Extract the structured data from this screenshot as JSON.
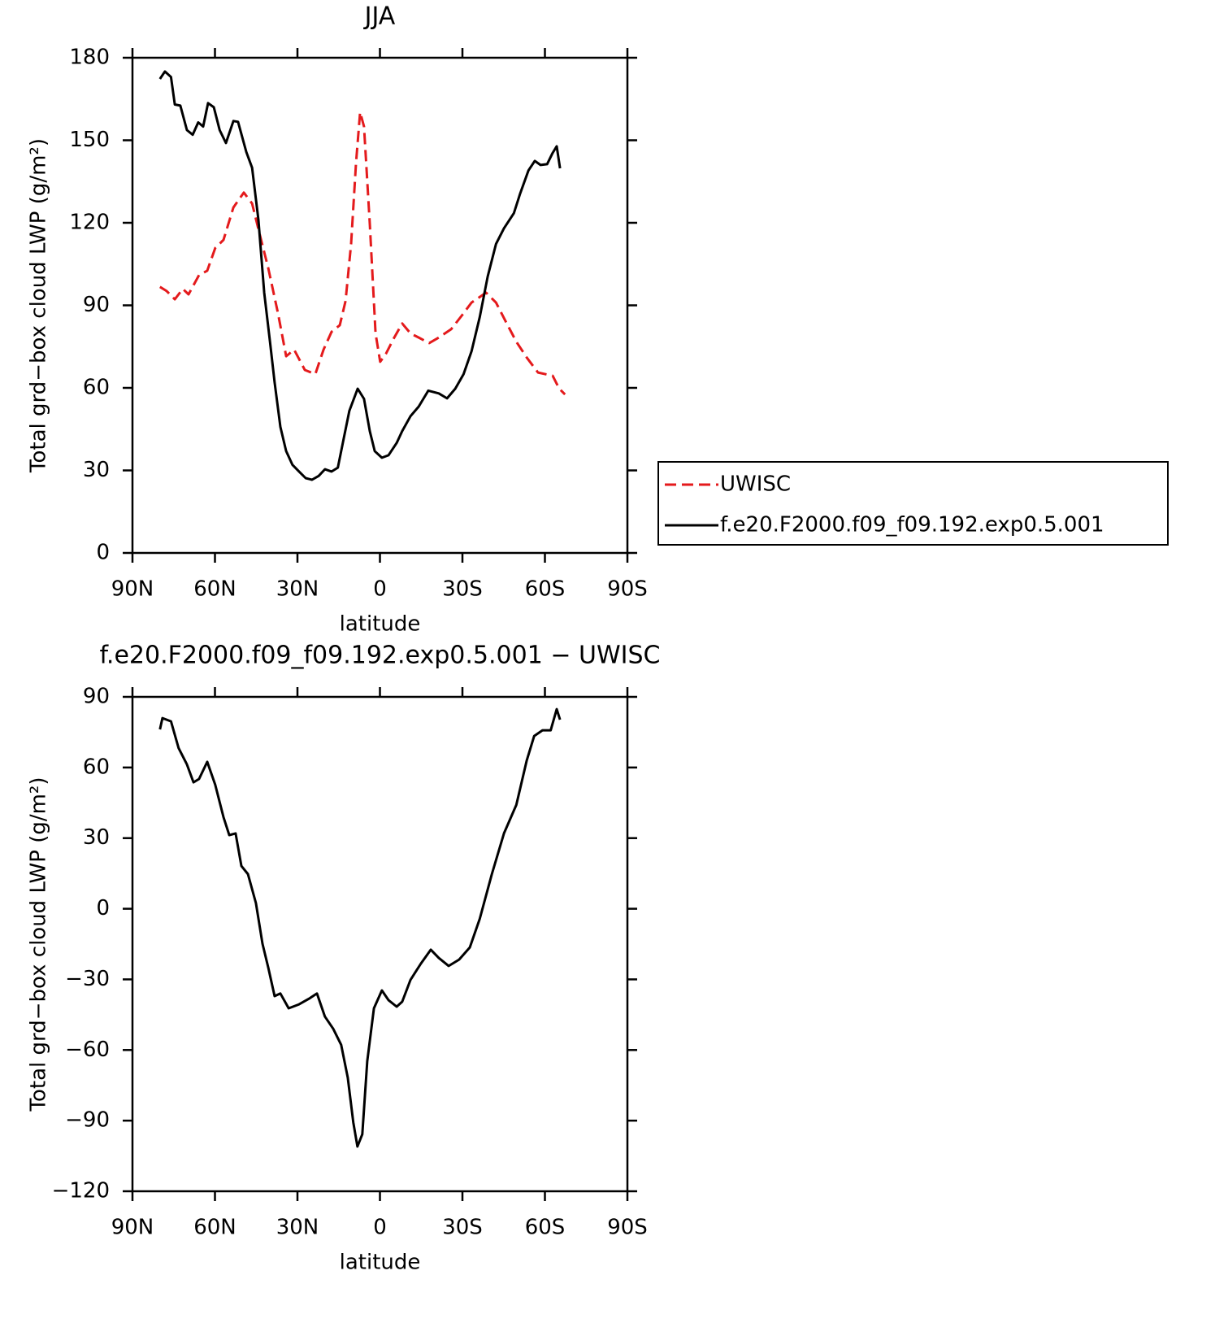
{
  "chart_data": [
    {
      "type": "line",
      "title": "JJA",
      "xlabel": "latitude",
      "ylabel": "Total grd−box cloud LWP (g/m²)",
      "xlim": [
        90,
        -90
      ],
      "xticks": [
        {
          "value": 90,
          "label": "90N"
        },
        {
          "value": 60,
          "label": "60N"
        },
        {
          "value": 30,
          "label": "30N"
        },
        0,
        {
          "value": -30,
          "label": "30S"
        },
        {
          "value": -60,
          "label": "60S"
        },
        {
          "value": -90,
          "label": "90S"
        }
      ],
      "ylim": [
        0,
        180
      ],
      "yticks": [
        0,
        30,
        60,
        90,
        120,
        150,
        180
      ],
      "legend": "right",
      "series": [
        {
          "name": "UWISC",
          "color": "#e41a1c",
          "dashed": true,
          "x": [
            80,
            77.6,
            74.6,
            71.7,
            69.6,
            65.8,
            62.8,
            59.9,
            56.9,
            53.3,
            49.5,
            46.5,
            43.6,
            40.6,
            37.1,
            34.1,
            31.2,
            27.3,
            23.5,
            20.5,
            17.6,
            14.6,
            12.5,
            10.5,
            8.7,
            7.2,
            5.8,
            3.7,
            1.6,
            -0.1,
            -2.2,
            -5.2,
            -8.1,
            -11.1,
            -14.1,
            -17.9,
            -21.4,
            -25.9,
            -29.8,
            -33.3,
            -38.6,
            -42.2,
            -45.7,
            -49.6,
            -53.4,
            -57.5,
            -62.8,
            -65.2,
            -67.3
          ],
          "values": [
            96.7,
            95.2,
            92.2,
            96,
            94,
            101,
            102.6,
            110.8,
            113.8,
            125.6,
            131,
            127,
            115.3,
            103.5,
            87.2,
            71.5,
            73.9,
            66.5,
            65,
            73.9,
            80.4,
            82.8,
            91.6,
            112.3,
            141.9,
            160.2,
            155,
            119.7,
            79.8,
            69.5,
            72.4,
            78.3,
            83.4,
            79.8,
            78.3,
            76.3,
            78.3,
            81.3,
            86.3,
            91,
            94.6,
            91,
            84.2,
            76.8,
            71,
            65.6,
            64.4,
            59.7,
            57.6
          ]
        },
        {
          "name": "f.e20.F2000.f09_f09.192.exp0.5.001",
          "color": "#000000",
          "dashed": false,
          "x": [
            80,
            78.2,
            76,
            74.6,
            72.6,
            70.2,
            68.1,
            66.1,
            64.3,
            62.5,
            60.4,
            58.3,
            56,
            53.3,
            51.6,
            48.6,
            46.5,
            44.2,
            42.1,
            40,
            38.3,
            36.2,
            34.1,
            31.8,
            29.4,
            27,
            24.7,
            22.3,
            20,
            17.6,
            15.3,
            13.2,
            11.1,
            8.1,
            5.8,
            3.7,
            1.9,
            -0.7,
            -3.1,
            -6.1,
            -8.1,
            -11.1,
            -14.1,
            -17.6,
            -21.4,
            -24.4,
            -27.4,
            -30.4,
            -33.3,
            -36.3,
            -39.2,
            -42.2,
            -45.1,
            -48.7,
            -51,
            -54,
            -56.3,
            -58.4,
            -60.8,
            -62.8,
            -64.3,
            -65.5
          ],
          "values": [
            172.3,
            175,
            173,
            163,
            162.6,
            153.7,
            152,
            156.5,
            155,
            163.5,
            162,
            153.7,
            149,
            157,
            156.7,
            145.7,
            140,
            121,
            94.6,
            76.8,
            62,
            45.8,
            37,
            32,
            29.6,
            27.2,
            26.6,
            28,
            30.4,
            29.6,
            31,
            41.4,
            51.7,
            59.7,
            56,
            44.3,
            37,
            34.6,
            35.5,
            40,
            44.3,
            49.7,
            53.2,
            59,
            58,
            56.2,
            59.7,
            65,
            73.3,
            85.7,
            100.5,
            112.3,
            118,
            123.5,
            130.6,
            139,
            142.5,
            141,
            141.3,
            145.4,
            147.8,
            139.8
          ]
        }
      ]
    },
    {
      "type": "line",
      "title": "f.e20.F2000.f09_f09.192.exp0.5.001 − UWISC",
      "xlabel": "latitude",
      "ylabel": "Total grd−box cloud LWP (g/m²)",
      "xlim": [
        90,
        -90
      ],
      "xticks": [
        {
          "value": 90,
          "label": "90N"
        },
        {
          "value": 60,
          "label": "60N"
        },
        {
          "value": 30,
          "label": "30N"
        },
        0,
        {
          "value": -30,
          "label": "30S"
        },
        {
          "value": -60,
          "label": "60S"
        },
        {
          "value": -90,
          "label": "90S"
        }
      ],
      "ylim": [
        -120,
        90
      ],
      "yticks": [
        {
          "value": -120,
          "label": "−120"
        },
        {
          "value": -90,
          "label": "−90"
        },
        {
          "value": -60,
          "label": "−60"
        },
        {
          "value": -30,
          "label": "−30"
        },
        0,
        30,
        60,
        90
      ],
      "series": [
        {
          "color": "#000000",
          "x": [
            80,
            79.1,
            76,
            73.2,
            70.2,
            67.8,
            65.8,
            62.8,
            59.9,
            56.9,
            54.8,
            52.5,
            50.4,
            48,
            45.1,
            42.7,
            40.6,
            38.3,
            36.2,
            33.2,
            29.4,
            25.8,
            22.9,
            20,
            17,
            14.1,
            11.7,
            9.7,
            8.2,
            6.4,
            4.6,
            2.2,
            -0.7,
            -3.1,
            -6.1,
            -8.1,
            -11.1,
            -14.9,
            -18.5,
            -21.4,
            -25,
            -28.8,
            -32.7,
            -36.3,
            -40.7,
            -45.1,
            -49.6,
            -53.4,
            -56.1,
            -59.1,
            -62.1,
            -64.3,
            -65.5
          ],
          "values": [
            76.2,
            81,
            79.6,
            68.2,
            61.3,
            53.7,
            55.1,
            62.4,
            52.7,
            38.9,
            31.3,
            32,
            18.2,
            14.7,
            2.4,
            -14.9,
            -25,
            -37.1,
            -36,
            -42.3,
            -40.6,
            -38.2,
            -36,
            -45.8,
            -51,
            -57.8,
            -71.7,
            -90.7,
            -101,
            -95.8,
            -64.7,
            -42.3,
            -34.7,
            -38.8,
            -41.6,
            -39.5,
            -30.2,
            -23.3,
            -17.4,
            -20.9,
            -24.3,
            -21.6,
            -16.4,
            -4.3,
            14.7,
            32,
            44.1,
            63.1,
            73.4,
            75.8,
            75.8,
            84.8,
            80.3
          ]
        }
      ]
    }
  ]
}
